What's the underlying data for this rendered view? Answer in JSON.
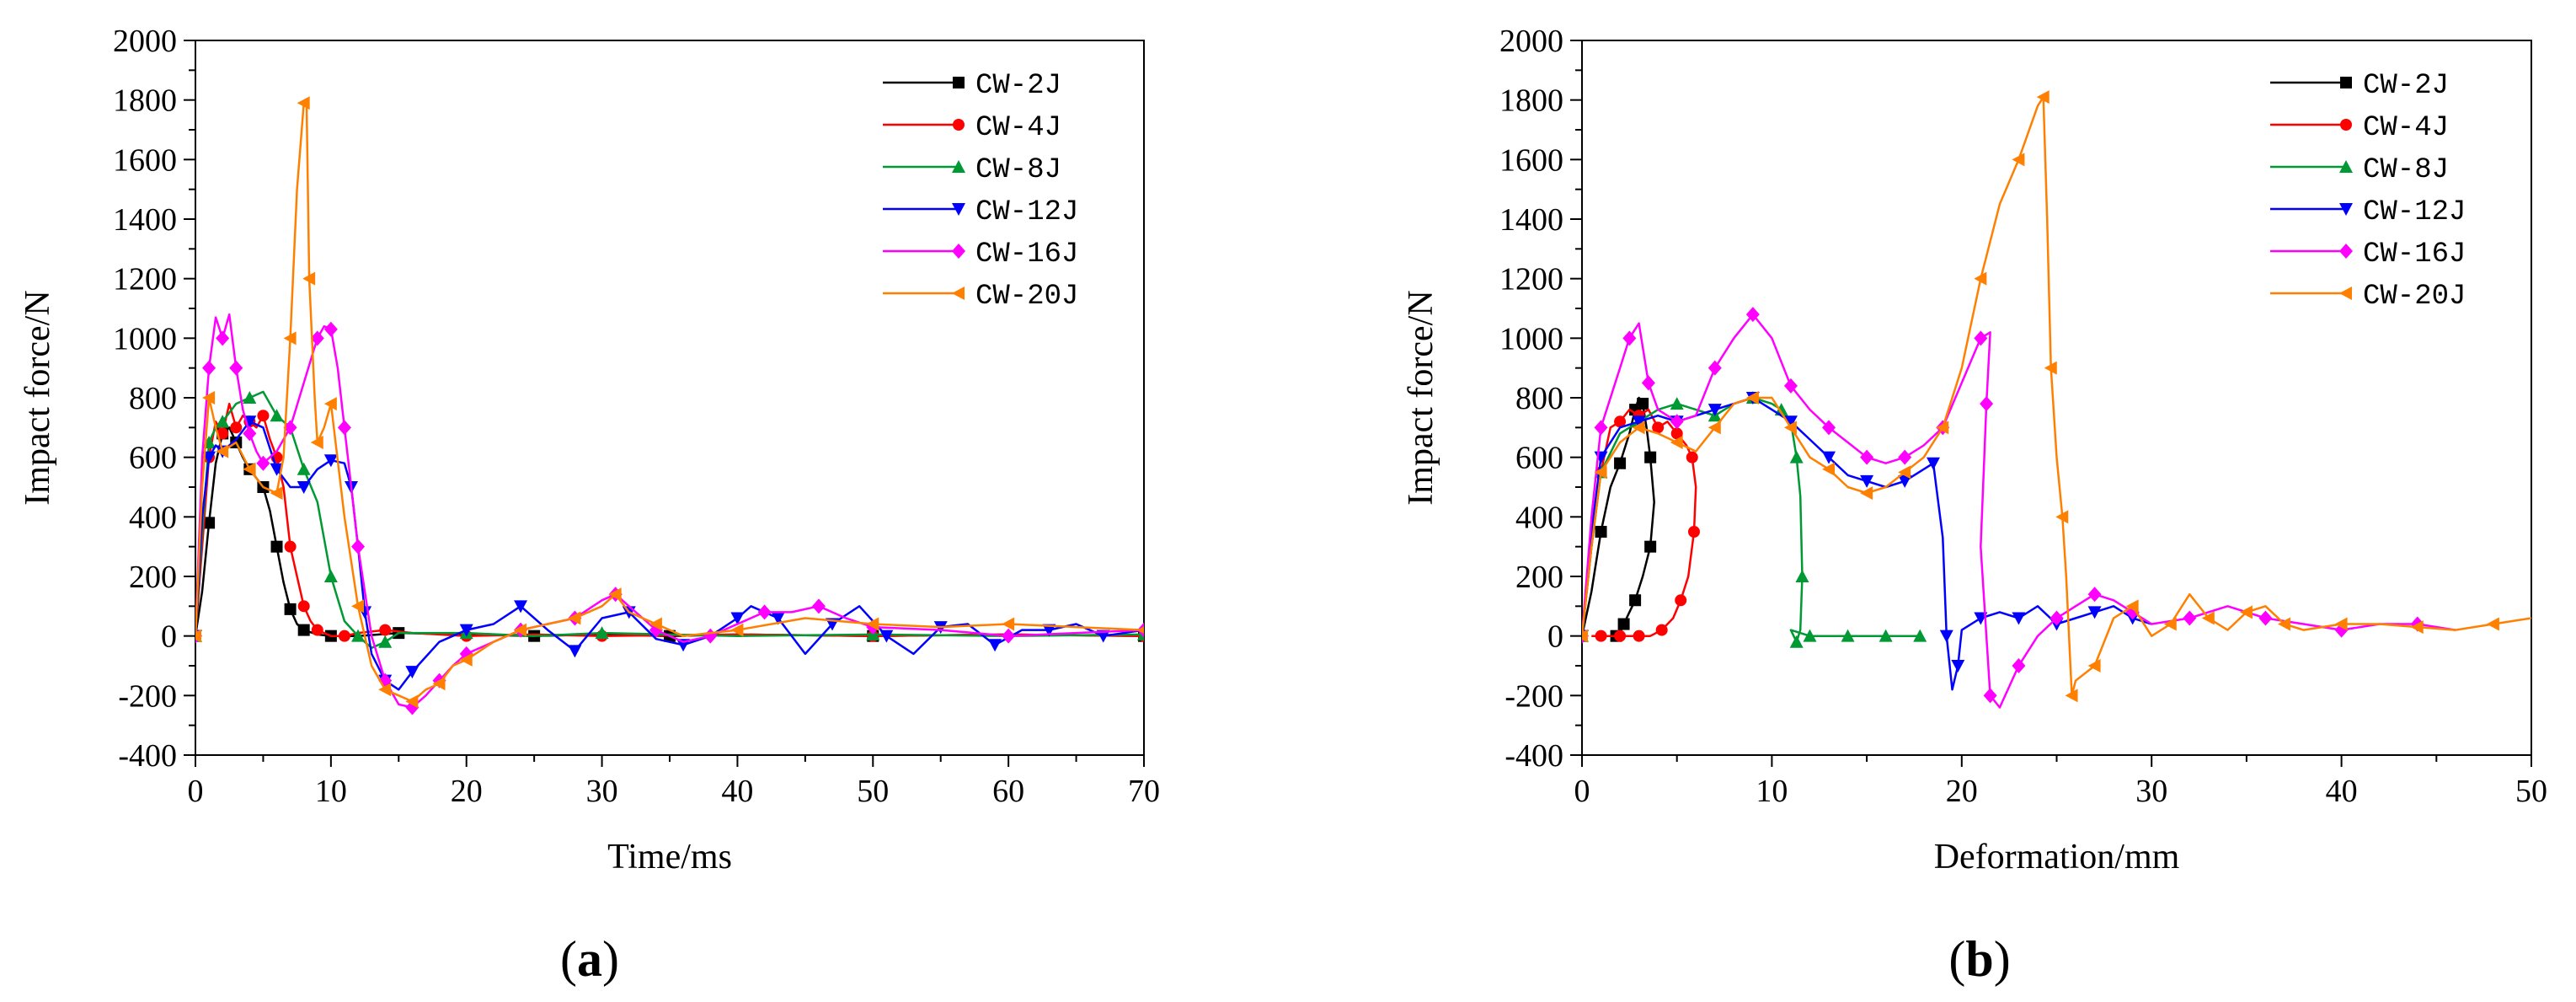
{
  "chart_data": [
    {
      "type": "line",
      "panel_label": "(a)",
      "panel_letter": "a",
      "xlabel": "Time/ms",
      "ylabel": "Impact force/N",
      "xlim": [
        0,
        70
      ],
      "ylim": [
        -400,
        2000
      ],
      "xticks": [
        0,
        10,
        20,
        30,
        40,
        50,
        60,
        70
      ],
      "yticks": [
        -400,
        -200,
        0,
        200,
        400,
        600,
        800,
        1000,
        1200,
        1400,
        1600,
        1800,
        2000
      ],
      "legend_position": "top-right",
      "series": [
        {
          "name": "CW-2J",
          "color": "#000000",
          "marker": "square",
          "x": [
            0,
            0.5,
            1,
            1.5,
            2,
            2.5,
            3,
            3.5,
            4,
            4.5,
            5,
            5.5,
            6,
            6.5,
            7,
            7.5,
            8,
            9,
            10,
            12,
            15,
            20,
            25,
            30,
            35,
            40,
            50,
            60,
            70
          ],
          "y": [
            0,
            150,
            380,
            580,
            680,
            700,
            650,
            600,
            560,
            530,
            500,
            420,
            300,
            180,
            90,
            40,
            20,
            5,
            0,
            0,
            10,
            5,
            0,
            5,
            0,
            5,
            0,
            5,
            0
          ]
        },
        {
          "name": "CW-4J",
          "color": "#ff0000",
          "marker": "circle",
          "x": [
            0,
            0.5,
            1,
            1.5,
            2,
            2.5,
            3,
            3.5,
            4,
            4.5,
            5,
            5.5,
            6,
            6.5,
            7,
            7.5,
            8,
            8.5,
            9,
            10,
            11,
            12,
            14,
            16,
            20,
            25,
            30,
            40,
            50,
            60,
            70
          ],
          "y": [
            0,
            300,
            600,
            720,
            680,
            780,
            700,
            740,
            720,
            700,
            740,
            660,
            600,
            500,
            300,
            200,
            100,
            50,
            20,
            0,
            0,
            10,
            20,
            10,
            0,
            5,
            0,
            5,
            0,
            5,
            0
          ]
        },
        {
          "name": "CW-8J",
          "color": "#009933",
          "marker": "triangle",
          "x": [
            0,
            0.5,
            1,
            1.5,
            2,
            3,
            4,
            5,
            6,
            7,
            8,
            9,
            10,
            11,
            12,
            13,
            14,
            15,
            20,
            25,
            30,
            40,
            50,
            60,
            70
          ],
          "y": [
            0,
            350,
            650,
            700,
            720,
            780,
            800,
            820,
            740,
            700,
            560,
            450,
            200,
            50,
            0,
            -40,
            -20,
            10,
            10,
            0,
            10,
            0,
            5,
            0,
            5
          ]
        },
        {
          "name": "CW-12J",
          "color": "#0000ff",
          "marker": "triangle-down",
          "x": [
            0,
            0.5,
            1,
            1.5,
            2,
            3,
            4,
            5,
            6,
            7,
            8,
            9,
            10,
            11,
            11.5,
            12,
            12.5,
            13,
            14,
            15,
            16,
            18,
            20,
            22,
            24,
            26,
            28,
            30,
            32,
            34,
            36,
            38,
            40,
            41,
            43,
            45,
            47,
            49,
            51,
            53,
            55,
            57,
            59,
            61,
            63,
            65,
            67,
            70
          ],
          "y": [
            0,
            400,
            600,
            640,
            620,
            660,
            720,
            700,
            560,
            500,
            500,
            560,
            590,
            580,
            500,
            300,
            80,
            -60,
            -150,
            -180,
            -120,
            -20,
            20,
            40,
            100,
            20,
            -50,
            60,
            80,
            -10,
            -30,
            0,
            60,
            100,
            60,
            -60,
            40,
            100,
            0,
            -60,
            30,
            40,
            -30,
            20,
            20,
            40,
            0,
            20
          ]
        },
        {
          "name": "CW-16J",
          "color": "#ff00ff",
          "marker": "diamond",
          "x": [
            0,
            0.5,
            1,
            1.5,
            2,
            2.5,
            3,
            3.5,
            4,
            4.5,
            5,
            6,
            7,
            8,
            9,
            9.5,
            10,
            10.5,
            11,
            11.5,
            12,
            13,
            14,
            15,
            16,
            17,
            18,
            19,
            20,
            22,
            24,
            26,
            28,
            30,
            31,
            32,
            34,
            36,
            38,
            40,
            42,
            44,
            46,
            48,
            50,
            55,
            60,
            65,
            70
          ],
          "y": [
            0,
            600,
            900,
            1070,
            1000,
            1080,
            900,
            760,
            680,
            620,
            580,
            620,
            700,
            850,
            1000,
            1040,
            1030,
            900,
            700,
            500,
            300,
            0,
            -150,
            -230,
            -240,
            -200,
            -150,
            -100,
            -60,
            -20,
            20,
            40,
            60,
            120,
            140,
            100,
            20,
            -20,
            0,
            40,
            80,
            80,
            100,
            60,
            30,
            20,
            0,
            10,
            20
          ]
        },
        {
          "name": "CW-20J",
          "color": "#ff8000",
          "marker": "triangle-left",
          "x": [
            0,
            0.5,
            1,
            1.5,
            2,
            3,
            4,
            5,
            6,
            6.5,
            7,
            7.5,
            8,
            8.2,
            8.4,
            8.8,
            9,
            9.5,
            10,
            11,
            12,
            13,
            14,
            15,
            16,
            17,
            18,
            19,
            20,
            22,
            24,
            26,
            28,
            30,
            31,
            32,
            34,
            36,
            40,
            45,
            50,
            55,
            60,
            65,
            70
          ],
          "y": [
            0,
            500,
            800,
            700,
            620,
            650,
            560,
            500,
            480,
            600,
            1000,
            1500,
            1790,
            1800,
            1200,
            800,
            650,
            700,
            780,
            400,
            100,
            -100,
            -180,
            -200,
            -220,
            -180,
            -160,
            -100,
            -80,
            -20,
            20,
            40,
            60,
            100,
            140,
            80,
            40,
            0,
            20,
            60,
            40,
            30,
            40,
            30,
            20
          ]
        }
      ]
    },
    {
      "type": "line",
      "panel_label": "(b)",
      "panel_letter": "b",
      "xlabel": "Deformation/mm",
      "ylabel": "Impact force/N",
      "xlim": [
        0,
        50
      ],
      "ylim": [
        -400,
        2000
      ],
      "xticks": [
        0,
        10,
        20,
        30,
        40,
        50
      ],
      "yticks": [
        -400,
        -200,
        0,
        200,
        400,
        600,
        800,
        1000,
        1200,
        1400,
        1600,
        1800,
        2000
      ],
      "legend_position": "top-right",
      "series": [
        {
          "name": "CW-2J",
          "color": "#000000",
          "marker": "square",
          "x": [
            0,
            0.5,
            1,
            1.5,
            2,
            2.5,
            2.8,
            3,
            3.2,
            3.4,
            3.6,
            3.8,
            3.6,
            3.2,
            2.8,
            2.5,
            2.2,
            2,
            1.8
          ],
          "y": [
            0,
            150,
            350,
            500,
            580,
            680,
            760,
            800,
            780,
            700,
            600,
            450,
            300,
            200,
            120,
            80,
            40,
            10,
            0
          ]
        },
        {
          "name": "CW-4J",
          "color": "#ff0000",
          "marker": "circle",
          "x": [
            0,
            0.5,
            1,
            1.5,
            2,
            2.5,
            3,
            3.5,
            4,
            4.5,
            5,
            5.5,
            5.8,
            6,
            5.9,
            5.6,
            5.2,
            4.8,
            4.2,
            3.6,
            3,
            2.5,
            2,
            1.5,
            1,
            0.5
          ],
          "y": [
            0,
            300,
            550,
            700,
            720,
            760,
            740,
            760,
            700,
            720,
            680,
            640,
            600,
            500,
            350,
            200,
            120,
            60,
            20,
            0,
            0,
            0,
            0,
            0,
            0,
            0
          ]
        },
        {
          "name": "CW-8J",
          "color": "#009933",
          "marker": "triangle",
          "x": [
            0,
            0.5,
            1,
            2,
            3,
            4,
            5,
            6,
            7,
            8,
            9,
            10,
            10.5,
            11,
            11.3,
            11.5,
            11.6,
            11.5,
            11.3,
            11,
            12,
            13,
            14,
            15,
            16,
            17,
            17.8
          ],
          "y": [
            0,
            300,
            550,
            680,
            720,
            760,
            780,
            760,
            740,
            780,
            800,
            780,
            760,
            720,
            600,
            470,
            200,
            20,
            -20,
            20,
            0,
            0,
            0,
            0,
            0,
            0,
            0
          ]
        },
        {
          "name": "CW-12J",
          "color": "#0000ff",
          "marker": "triangle-down",
          "x": [
            0,
            0.5,
            1,
            2,
            3,
            4,
            5,
            6,
            7,
            8,
            9,
            10,
            11,
            12,
            13,
            14,
            15,
            16,
            17,
            18,
            18.5,
            19,
            19.2,
            19.5,
            19.8,
            20,
            21,
            22,
            23,
            24,
            25,
            26,
            27,
            28,
            29,
            30
          ],
          "y": [
            0,
            350,
            600,
            700,
            720,
            740,
            720,
            740,
            760,
            780,
            800,
            760,
            720,
            660,
            600,
            540,
            520,
            500,
            520,
            560,
            580,
            330,
            0,
            -180,
            -100,
            20,
            60,
            80,
            60,
            100,
            40,
            60,
            80,
            100,
            60,
            40
          ]
        },
        {
          "name": "CW-16J",
          "color": "#ff00ff",
          "marker": "diamond",
          "x": [
            0,
            0.5,
            1,
            2,
            2.5,
            3,
            3.5,
            4,
            5,
            6,
            7,
            8,
            9,
            10,
            11,
            12,
            13,
            14,
            15,
            16,
            17,
            18,
            19,
            20,
            21,
            21.5,
            21.3,
            21,
            21.5,
            22,
            23,
            24,
            25,
            26,
            27,
            28,
            29,
            30,
            32,
            34,
            36,
            38,
            40,
            42,
            44,
            46
          ],
          "y": [
            0,
            400,
            700,
            900,
            1000,
            1050,
            850,
            760,
            720,
            740,
            900,
            1000,
            1080,
            1000,
            840,
            760,
            700,
            650,
            600,
            580,
            600,
            640,
            700,
            850,
            1000,
            1020,
            780,
            300,
            -200,
            -240,
            -100,
            0,
            60,
            100,
            140,
            120,
            80,
            40,
            60,
            100,
            60,
            40,
            20,
            40,
            40,
            20
          ]
        },
        {
          "name": "CW-20J",
          "color": "#ff8000",
          "marker": "triangle-left",
          "x": [
            0,
            0.5,
            1,
            2,
            3,
            4,
            5,
            6,
            7,
            8,
            9,
            10,
            11,
            12,
            13,
            14,
            15,
            16,
            17,
            18,
            19,
            20,
            21,
            22,
            23,
            24,
            24.3,
            24.5,
            24.7,
            25,
            25.3,
            25.5,
            25.8,
            26,
            27,
            28,
            29,
            30,
            31,
            32,
            33,
            34,
            35,
            36,
            37,
            38,
            40,
            42,
            44,
            46,
            48,
            50
          ],
          "y": [
            0,
            300,
            550,
            650,
            700,
            680,
            650,
            620,
            700,
            780,
            800,
            800,
            700,
            600,
            560,
            500,
            480,
            500,
            550,
            600,
            700,
            900,
            1200,
            1450,
            1600,
            1780,
            1810,
            1400,
            900,
            600,
            400,
            200,
            -200,
            -150,
            -100,
            60,
            100,
            0,
            40,
            140,
            60,
            20,
            80,
            100,
            40,
            20,
            40,
            40,
            30,
            20,
            40,
            60
          ]
        }
      ]
    }
  ]
}
